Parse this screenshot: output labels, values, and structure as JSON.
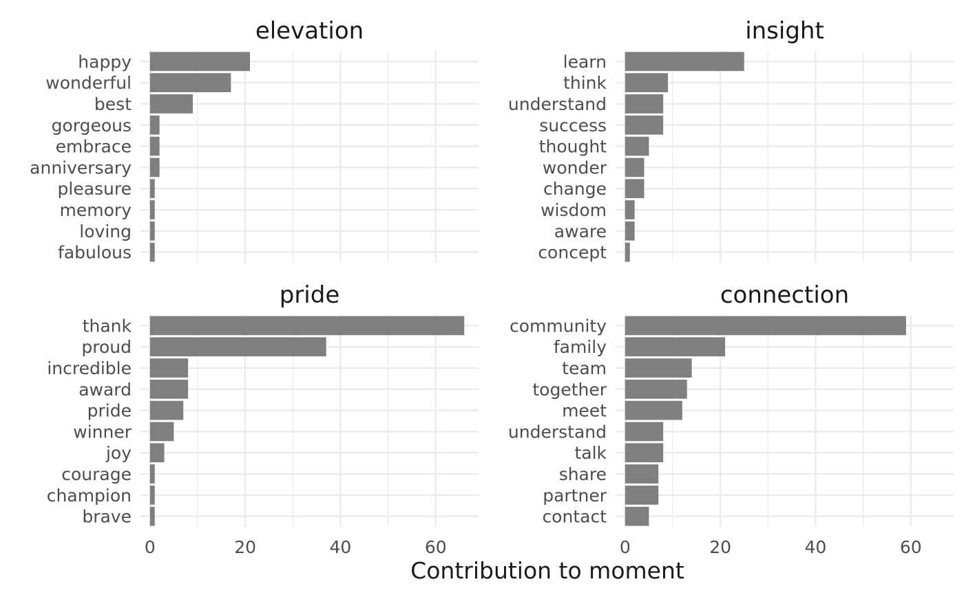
{
  "chart_data": {
    "type": "bar",
    "orientation": "horizontal",
    "layout": "facet 2x2",
    "xlabel": "Contribution to moment",
    "ylabel": "",
    "xlim": [
      -2,
      69
    ],
    "x_ticks": [
      0,
      20,
      40,
      60
    ],
    "grid": true,
    "bar_color": "#7f7f7f",
    "grid_color": "#ebebeb",
    "panels": [
      {
        "title": "elevation",
        "categories": [
          "happy",
          "wonderful",
          "best",
          "gorgeous",
          "embrace",
          "anniversary",
          "pleasure",
          "memory",
          "loving",
          "fabulous"
        ],
        "values": [
          21,
          17,
          9,
          2,
          2,
          2,
          1,
          1,
          1,
          1
        ]
      },
      {
        "title": "insight",
        "categories": [
          "learn",
          "think",
          "understand",
          "success",
          "thought",
          "wonder",
          "change",
          "wisdom",
          "aware",
          "concept"
        ],
        "values": [
          25,
          9,
          8,
          8,
          5,
          4,
          4,
          2,
          2,
          1
        ]
      },
      {
        "title": "pride",
        "categories": [
          "thank",
          "proud",
          "incredible",
          "award",
          "pride",
          "winner",
          "joy",
          "courage",
          "champion",
          "brave"
        ],
        "values": [
          66,
          37,
          8,
          8,
          7,
          5,
          3,
          1,
          1,
          1
        ]
      },
      {
        "title": "connection",
        "categories": [
          "community",
          "family",
          "team",
          "together",
          "meet",
          "understand",
          "talk",
          "share",
          "partner",
          "contact"
        ],
        "values": [
          59,
          21,
          14,
          13,
          12,
          8,
          8,
          7,
          7,
          5
        ]
      }
    ]
  }
}
